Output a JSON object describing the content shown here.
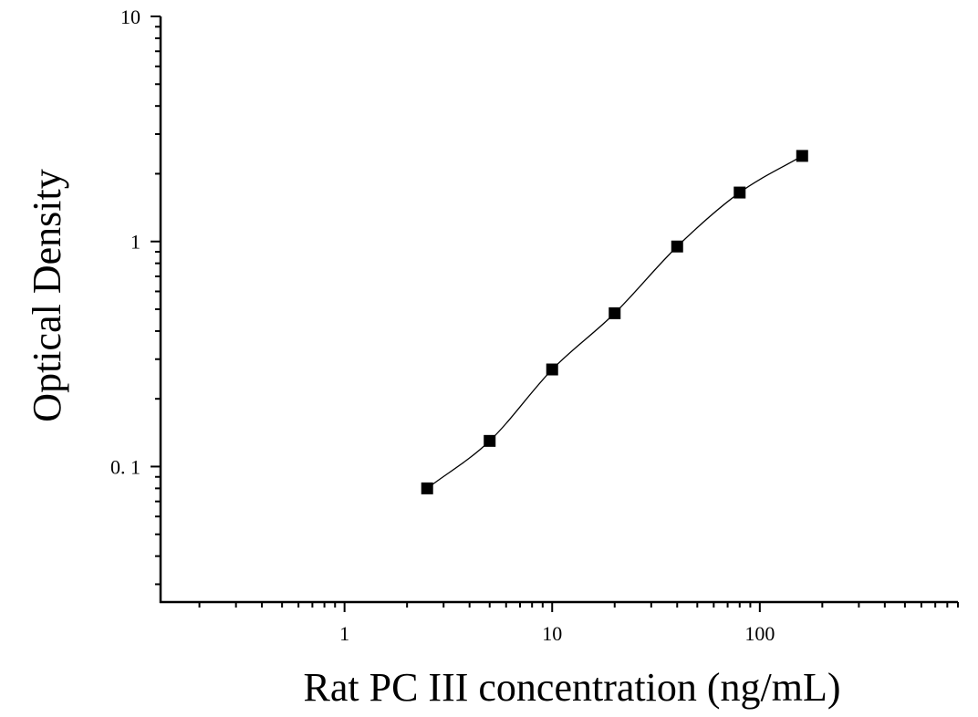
{
  "chart_data": {
    "type": "scatter",
    "xlabel": "Rat PC III concentration (ng/mL)",
    "ylabel": "Optical Density",
    "xscale": "log",
    "yscale": "log",
    "xlim": [
      0.13,
      900
    ],
    "ylim": [
      0.025,
      10
    ],
    "xticks": [
      {
        "value": 1,
        "label": "1"
      },
      {
        "value": 10,
        "label": "10"
      },
      {
        "value": 100,
        "label": "100"
      }
    ],
    "yticks": [
      {
        "value": 0.1,
        "label": "0. 1"
      },
      {
        "value": 1,
        "label": "1"
      },
      {
        "value": 10,
        "label": "10"
      }
    ],
    "grid": false,
    "legend": "none",
    "series": [
      {
        "x": [
          2.5,
          5,
          10,
          20,
          40,
          80,
          160
        ],
        "y": [
          0.08,
          0.13,
          0.27,
          0.48,
          0.95,
          1.65,
          2.4
        ],
        "marker": "square",
        "color": "#000000",
        "fit": "curve"
      }
    ]
  }
}
